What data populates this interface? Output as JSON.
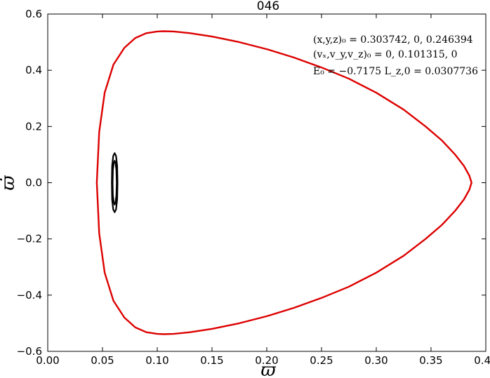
{
  "chart_data": {
    "type": "line",
    "title": "046",
    "xlabel": "ϖ",
    "ylabel": "ϖ̇",
    "xlim": [
      0.0,
      0.4
    ],
    "ylim": [
      -0.6,
      0.6
    ],
    "grid": false,
    "xticks": [
      "0.00",
      "0.05",
      "0.10",
      "0.15",
      "0.20",
      "0.25",
      "0.30",
      "0.35",
      "0.40"
    ],
    "yticks": [
      "−0.6",
      "−0.4",
      "−0.2",
      "0.0",
      "0.2",
      "0.4",
      "0.6"
    ],
    "xtick_values": [
      0.0,
      0.05,
      0.1,
      0.15,
      0.2,
      0.25,
      0.3,
      0.35,
      0.4
    ],
    "ytick_values": [
      -0.6,
      -0.4,
      -0.2,
      0.0,
      0.2,
      0.4,
      0.6
    ],
    "annotations": [
      "(x,y,z)₀ = 0.303742, 0, 0.246394",
      "(vₓ,v_y,v_z)₀ = 0, 0.101315, 0",
      "E₀ = −0.7175   L_z,0 = 0.0307736"
    ],
    "series": [
      {
        "color": "#dd0000",
        "x": [
          0.0448,
          0.047,
          0.052,
          0.06,
          0.07,
          0.08,
          0.09,
          0.1,
          0.106,
          0.115,
          0.13,
          0.15,
          0.175,
          0.2,
          0.225,
          0.25,
          0.275,
          0.3,
          0.325,
          0.345,
          0.36,
          0.372,
          0.38,
          0.385,
          0.387,
          0.385,
          0.38,
          0.372,
          0.36,
          0.345,
          0.325,
          0.3,
          0.275,
          0.25,
          0.225,
          0.2,
          0.175,
          0.15,
          0.13,
          0.115,
          0.106,
          0.1,
          0.09,
          0.08,
          0.07,
          0.06,
          0.052,
          0.047,
          0.0448
        ],
        "y": [
          0.0,
          0.18,
          0.32,
          0.42,
          0.48,
          0.515,
          0.532,
          0.538,
          0.539,
          0.538,
          0.532,
          0.52,
          0.5,
          0.475,
          0.445,
          0.41,
          0.37,
          0.32,
          0.26,
          0.2,
          0.15,
          0.1,
          0.06,
          0.025,
          0.0,
          -0.025,
          -0.06,
          -0.1,
          -0.15,
          -0.2,
          -0.26,
          -0.32,
          -0.37,
          -0.41,
          -0.445,
          -0.475,
          -0.5,
          -0.52,
          -0.532,
          -0.538,
          -0.539,
          -0.538,
          -0.532,
          -0.515,
          -0.48,
          -0.42,
          -0.32,
          -0.18,
          0.0
        ]
      },
      {
        "color": "#000000",
        "x": [
          0.0585,
          0.0588,
          0.0598,
          0.0611,
          0.0624,
          0.0634,
          0.0637,
          0.0634,
          0.0624,
          0.0611,
          0.0598,
          0.0588,
          0.0585
        ],
        "y": [
          0.0,
          0.06,
          0.095,
          0.105,
          0.095,
          0.06,
          0.0,
          -0.06,
          -0.095,
          -0.105,
          -0.095,
          -0.06,
          0.0
        ]
      },
      {
        "color": "#000000",
        "x": [
          0.0592,
          0.0595,
          0.0603,
          0.0611,
          0.0619,
          0.0627,
          0.063,
          0.0627,
          0.0619,
          0.0611,
          0.0603,
          0.0595,
          0.0592
        ],
        "y": [
          0.0,
          0.045,
          0.07,
          0.078,
          0.07,
          0.045,
          0.0,
          -0.045,
          -0.07,
          -0.078,
          -0.07,
          -0.045,
          0.0
        ]
      }
    ]
  }
}
